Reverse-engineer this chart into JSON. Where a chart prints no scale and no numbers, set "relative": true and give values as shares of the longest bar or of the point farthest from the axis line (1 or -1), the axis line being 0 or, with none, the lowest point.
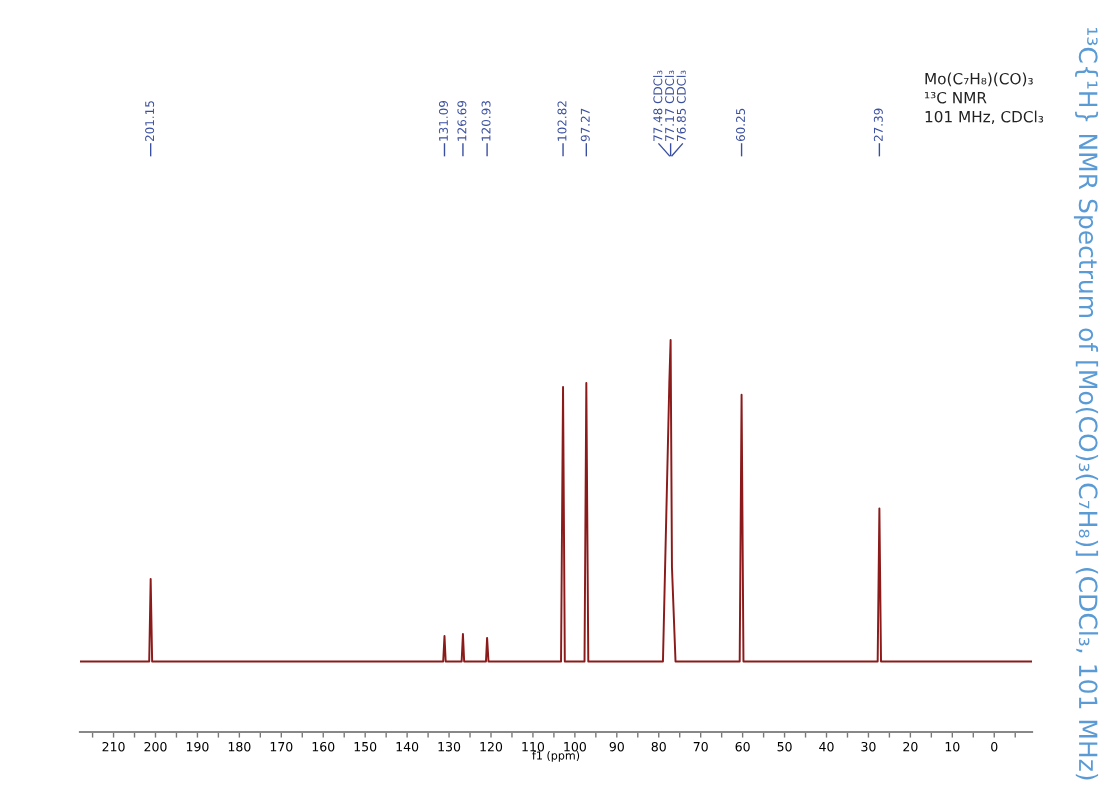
{
  "chart_data": {
    "type": "line",
    "relative": true,
    "title": "¹³C{¹H} NMR Spectrum of [Mo(CO)₃(C₇H₈)] (CDCl₃, 101 MHz)",
    "xlabel": "f1 (ppm)",
    "xlim": [
      218,
      -9
    ],
    "xticks": [
      {
        "value": 215,
        "label": null
      },
      210,
      {
        "value": 205,
        "label": null
      },
      200,
      {
        "value": 195,
        "label": null
      },
      190,
      {
        "value": 185,
        "label": null
      },
      180,
      {
        "value": 175,
        "label": null
      },
      170,
      {
        "value": 165,
        "label": null
      },
      160,
      {
        "value": 155,
        "label": null
      },
      150,
      {
        "value": 145,
        "label": null
      },
      140,
      {
        "value": 135,
        "label": null
      },
      130,
      {
        "value": 125,
        "label": null
      },
      120,
      {
        "value": 115,
        "label": null
      },
      110,
      {
        "value": 105,
        "label": null
      },
      100,
      {
        "value": 95,
        "label": null
      },
      90,
      {
        "value": 85,
        "label": null
      },
      80,
      {
        "value": 75,
        "label": null
      },
      70,
      {
        "value": 65,
        "label": null
      },
      60,
      {
        "value": 55,
        "label": null
      },
      50,
      {
        "value": 45,
        "label": null
      },
      40,
      {
        "value": 35,
        "label": null
      },
      30,
      {
        "value": 25,
        "label": null
      },
      20,
      {
        "value": 15,
        "label": null
      },
      10,
      {
        "value": 5,
        "label": null
      },
      0,
      {
        "value": -5,
        "label": null
      }
    ],
    "series": [
      {
        "color": "#8b1a1a",
        "x": [
          218,
          201.5,
          201.15,
          200.8,
          131.4,
          131.09,
          130.8,
          127.0,
          126.69,
          126.4,
          121.2,
          120.93,
          120.6,
          103.3,
          102.82,
          102.4,
          97.7,
          97.27,
          96.8,
          79.0,
          77.48,
          77.17,
          76.85,
          76.0,
          60.7,
          60.25,
          59.8,
          27.8,
          27.39,
          27.0,
          -9
        ],
        "values": [
          0.18,
          0.18,
          0.39,
          0.18,
          0.18,
          0.245,
          0.18,
          0.18,
          0.25,
          0.18,
          0.18,
          0.24,
          0.18,
          0.18,
          0.88,
          0.18,
          0.18,
          0.89,
          0.18,
          0.18,
          0.89,
          1.0,
          0.42,
          0.18,
          0.18,
          0.86,
          0.18,
          0.18,
          0.57,
          0.18,
          0.18
        ]
      }
    ],
    "annotations": [
      "201.15",
      "131.09",
      "126.69",
      "120.93",
      "102.82",
      "97.27",
      "77.48 CDCl₃",
      "77.17 CDCl₃",
      "76.85 CDCl₃",
      "60.25",
      "27.39",
      "Mo(C₇H₈)(CO)₃",
      "¹³C NMR",
      "101 MHz, CDCl₃"
    ]
  }
}
